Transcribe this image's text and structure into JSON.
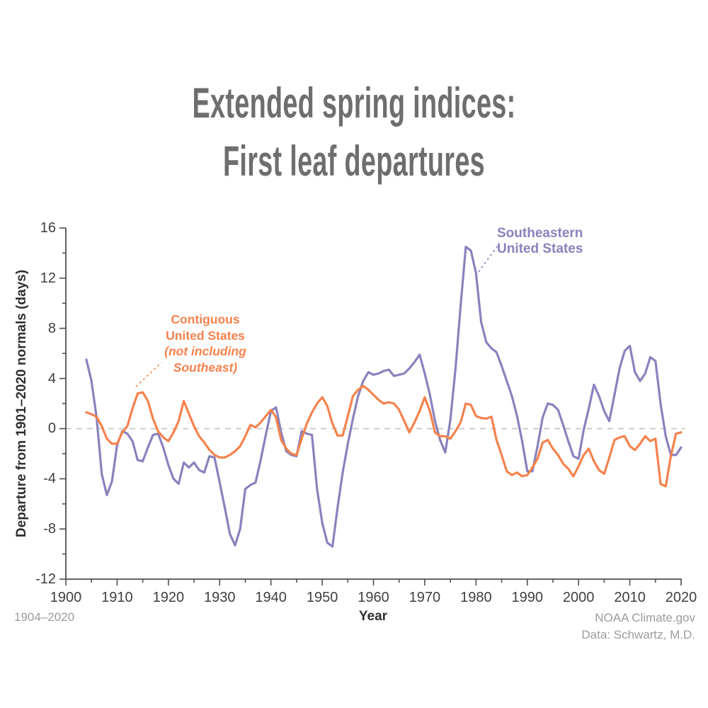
{
  "title": {
    "line1": "Extended spring indices:",
    "line2": "First leaf departures"
  },
  "y_axis": {
    "label": "Departure from 1901–2020 normals (days)"
  },
  "x_axis": {
    "label": "Year"
  },
  "annotations": {
    "southeast": {
      "line1": "Southeastern",
      "line2": "United States",
      "color": "#8A82BD"
    },
    "contiguous": {
      "line1": "Contiguous",
      "line2": "United States",
      "line3": "(not including",
      "line4": "Southeast)",
      "color": "#F5824D"
    }
  },
  "footer": {
    "left": "1904–2020",
    "right_line1": "NOAA Climate.gov",
    "right_line2": "Data: Schwartz, M.D."
  },
  "chart_data": {
    "type": "line",
    "title": "Extended spring indices: First leaf departures",
    "xlabel": "Year",
    "ylabel": "Departure from 1901–2020 normals (days)",
    "x_range": [
      1900,
      2020
    ],
    "ylim": [
      -12,
      16
    ],
    "x_ticks": [
      1900,
      1910,
      1920,
      1930,
      1940,
      1950,
      1960,
      1970,
      1980,
      1990,
      2000,
      2010,
      2020
    ],
    "x_minor_ticks": [
      1905,
      1915,
      1925,
      1935,
      1945,
      1955,
      1965,
      1975,
      1985,
      1995,
      2005,
      2015
    ],
    "y_ticks": [
      16,
      12,
      8,
      4,
      0,
      -4,
      -8,
      -12
    ],
    "y_minor_ticks": [
      14,
      10,
      6,
      2,
      -2,
      -6,
      -10
    ],
    "grid": "zero-line dashed only",
    "legend_position": "annotations on chart",
    "start_year": 1904,
    "series": [
      {
        "name": "Southeastern United States",
        "color": "#8A82BD",
        "values": [
          5.5,
          3.8,
          0.9,
          -3.6,
          -5.3,
          -4.2,
          -1.3,
          -0.2,
          -0.4,
          -1.0,
          -2.5,
          -2.6,
          -1.5,
          -0.5,
          -0.4,
          -1.5,
          -2.9,
          -4.0,
          -4.4,
          -2.7,
          -3.1,
          -2.7,
          -3.3,
          -3.5,
          -2.2,
          -2.3,
          -4.3,
          -6.3,
          -8.4,
          -9.3,
          -8.0,
          -4.8,
          -4.5,
          -4.3,
          -2.5,
          -0.5,
          1.4,
          1.7,
          -0.3,
          -1.8,
          -2.1,
          -2.2,
          -0.2,
          -0.4,
          -0.5,
          -4.8,
          -7.5,
          -9.1,
          -9.4,
          -6.3,
          -3.5,
          -1.2,
          0.8,
          2.6,
          3.8,
          4.5,
          4.3,
          4.4,
          4.6,
          4.7,
          4.2,
          4.3,
          4.4,
          4.8,
          5.3,
          5.9,
          4.4,
          2.7,
          0.6,
          -0.9,
          -1.9,
          0.7,
          4.8,
          9.8,
          14.5,
          14.2,
          12.4,
          8.5,
          6.9,
          6.4,
          6.1,
          5.0,
          3.8,
          2.6,
          1.0,
          -1.0,
          -3.4,
          -3.4,
          -1.4,
          0.9,
          2.0,
          1.9,
          1.5,
          0.3,
          -1.0,
          -2.2,
          -2.4,
          -0.1,
          1.6,
          3.5,
          2.6,
          1.4,
          0.6,
          2.7,
          4.8,
          6.2,
          6.6,
          4.5,
          3.8,
          4.4,
          5.7,
          5.4,
          2.0,
          -0.6,
          -2.1,
          -2.1,
          -1.5
        ]
      },
      {
        "name": "Contiguous United States (not including Southeast)",
        "color": "#F5824D",
        "values": [
          1.3,
          1.15,
          0.95,
          0.2,
          -0.8,
          -1.2,
          -1.2,
          -0.3,
          0.2,
          1.6,
          2.8,
          2.9,
          2.2,
          0.8,
          -0.2,
          -0.7,
          -1.0,
          -0.3,
          0.6,
          2.2,
          1.2,
          0.2,
          -0.6,
          -1.1,
          -1.7,
          -2.1,
          -2.3,
          -2.3,
          -2.1,
          -1.8,
          -1.4,
          -0.6,
          0.3,
          0.1,
          0.5,
          1.0,
          1.5,
          0.9,
          -0.9,
          -1.6,
          -2.0,
          -2.1,
          -0.8,
          0.4,
          1.3,
          2.0,
          2.5,
          1.8,
          0.4,
          -0.55,
          -0.55,
          1.0,
          2.6,
          3.1,
          3.4,
          3.1,
          2.7,
          2.3,
          2.0,
          2.1,
          2.0,
          1.5,
          0.6,
          -0.3,
          0.5,
          1.4,
          2.5,
          1.4,
          -0.3,
          -0.6,
          -0.6,
          -0.8,
          -0.2,
          0.5,
          2.0,
          1.9,
          1.0,
          0.85,
          0.8,
          0.95,
          -0.9,
          -2.1,
          -3.4,
          -3.7,
          -3.5,
          -3.8,
          -3.7,
          -3.1,
          -2.4,
          -1.1,
          -0.9,
          -1.6,
          -2.1,
          -2.8,
          -3.2,
          -3.8,
          -3.0,
          -2.1,
          -1.6,
          -2.6,
          -3.3,
          -3.6,
          -2.3,
          -0.9,
          -0.7,
          -0.6,
          -1.4,
          -1.7,
          -1.2,
          -0.6,
          -1.0,
          -0.8,
          -4.4,
          -4.6,
          -2.2,
          -0.4,
          -0.3
        ]
      }
    ]
  }
}
